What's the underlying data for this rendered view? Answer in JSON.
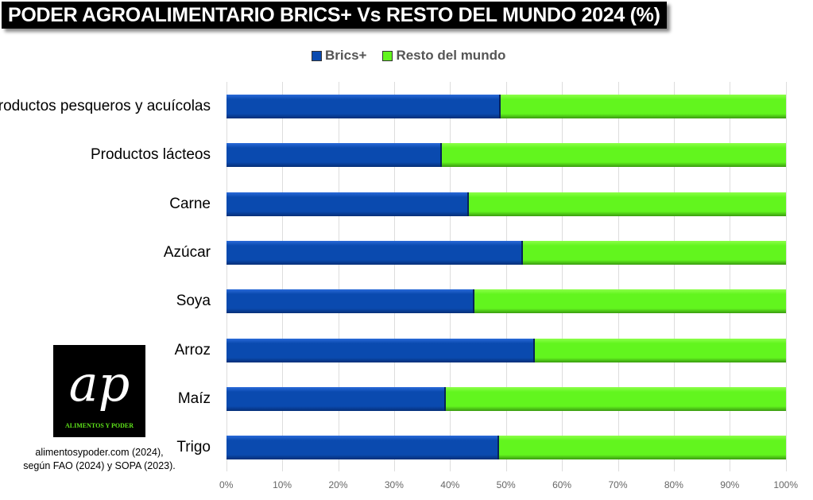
{
  "chart_data": {
    "type": "bar",
    "orientation": "horizontal",
    "stacked": "percent",
    "title": "PODER AGROALIMENTARIO BRICS+ Vs RESTO DEL MUNDO 2024 (%)",
    "categories": [
      "Productos pesqueros y acuícolas",
      "Productos lácteos",
      "Carne",
      "Azúcar",
      "Soya",
      "Arroz",
      "Maíz",
      "Trigo"
    ],
    "series": [
      {
        "name": "Brics+",
        "color": "#0a4aaf",
        "values": [
          49.0,
          38.6,
          43.4,
          53.0,
          44.4,
          55.2,
          39.3,
          48.8
        ]
      },
      {
        "name": "Resto del mundo",
        "color": "#62f51e",
        "values": [
          51.0,
          61.4,
          56.6,
          47.0,
          55.6,
          44.8,
          60.7,
          51.2
        ]
      }
    ],
    "xticks": [
      "0%",
      "10%",
      "20%",
      "30%",
      "40%",
      "50%",
      "60%",
      "70%",
      "80%",
      "90%",
      "100%"
    ],
    "xlim": [
      0,
      100
    ],
    "grid": true,
    "legend": "top"
  },
  "logo": {
    "mark": "ap",
    "text": "ALIMENTOS Y PODER"
  },
  "source": {
    "line1": "alimentosypoder.com (2024),",
    "line2": "según FAO  (2024) y SOPA (2023)."
  }
}
